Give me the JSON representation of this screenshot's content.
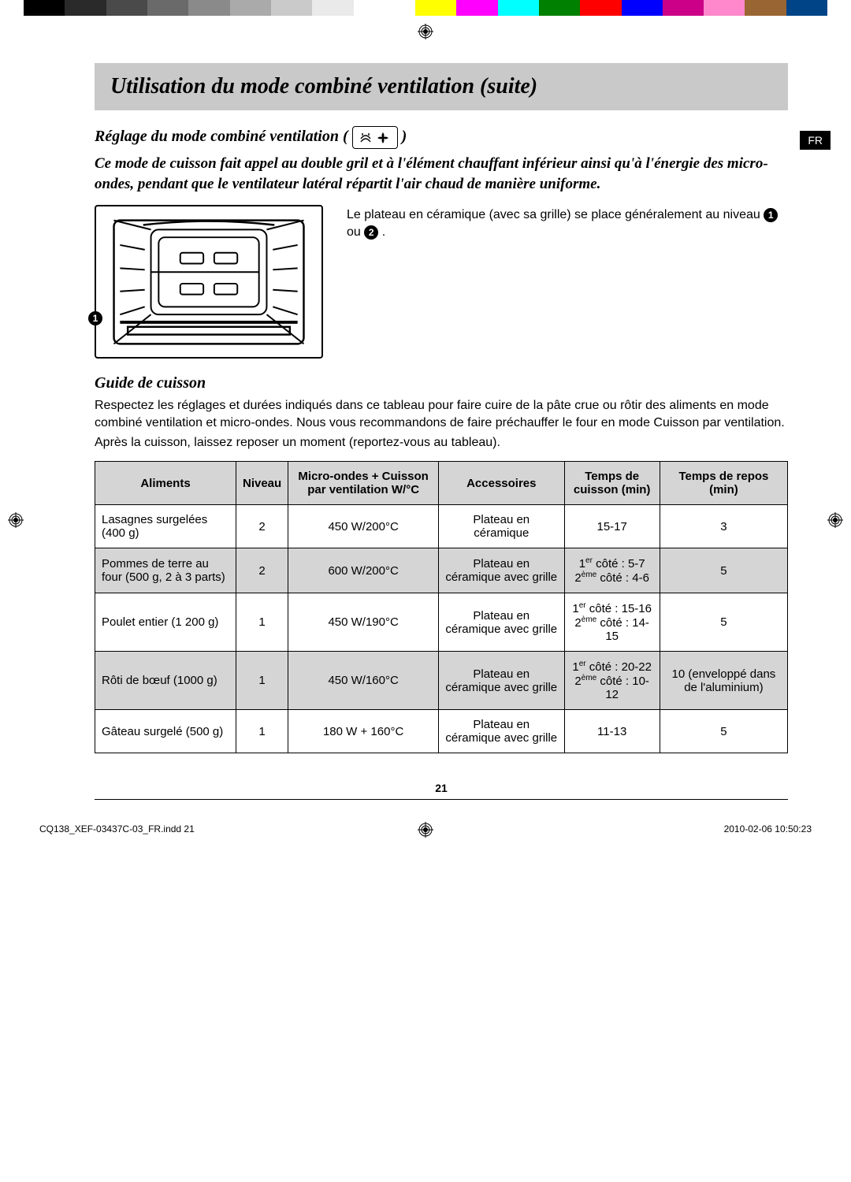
{
  "colorbar": {
    "swatches": [
      "#000000",
      "#2a2a2a",
      "#4a4a4a",
      "#6a6a6a",
      "#8a8a8a",
      "#aaaaaa",
      "#cacaca",
      "#eaeaea",
      "#ffffff",
      "",
      "#ffff00",
      "#ff00ff",
      "#00ffff",
      "#008000",
      "#ff0000",
      "#0000ff",
      "#cc0088",
      "#ff88cc",
      "#996633",
      "#004488"
    ]
  },
  "lang_tab": "FR",
  "title": "Utilisation du mode combiné ventilation (suite)",
  "section1_title": "Réglage du mode combiné ventilation ( ",
  "section1_title_end": " )",
  "intro": "Ce mode de cuisson fait appel au double gril et à l'élément chauffant inférieur ainsi qu'à l'énergie des micro-ondes, pendant que le ventilateur latéral répartit l'air chaud de manière uniforme.",
  "fig_caption_before": "Le plateau en céramique (avec sa grille) se place généralement au niveau ",
  "fig_caption_mid": " ou ",
  "fig_caption_end": ".",
  "fig_levels": [
    "1",
    "2"
  ],
  "section2_title": "Guide de cuisson",
  "para1": "Respectez les réglages et durées indiqués dans ce tableau pour faire cuire de la pâte crue ou rôtir des aliments en mode combiné ventilation et micro-ondes. Nous vous recommandons de faire préchauffer le four en mode Cuisson par ventilation.",
  "para2": "Après la cuisson, laissez reposer un moment (reportez-vous au tableau).",
  "table": {
    "columns": [
      "Aliments",
      "Niveau",
      "Micro-ondes + Cuisson par ventilation W/°C",
      "Accessoires",
      "Temps de cuisson (min)",
      "Temps de repos (min)"
    ],
    "rows": [
      {
        "shade": false,
        "aliments": "Lasagnes surgelées (400 g)",
        "niveau": "2",
        "mw": "450 W/200°C",
        "acc": "Plateau en céramique",
        "temps": "15-17",
        "repos": "3"
      },
      {
        "shade": true,
        "aliments": "Pommes de terre au four (500 g, 2 à 3 parts)",
        "niveau": "2",
        "mw": "600 W/200°C",
        "acc": "Plateau en céramique avec grille",
        "temps": "<span>1<sup>er</sup> côté : 5-7<br>2<sup>ème</sup> côté : 4-6</span>",
        "repos": "5"
      },
      {
        "shade": false,
        "aliments": "Poulet entier (1 200 g)",
        "niveau": "1",
        "mw": "450 W/190°C",
        "acc": "Plateau en céramique avec grille",
        "temps": "<span>1<sup>er</sup> côté : 15-16<br>2<sup>ème</sup> côté : 14-15</span>",
        "repos": "5"
      },
      {
        "shade": true,
        "aliments": "Rôti de bœuf (1000 g)",
        "niveau": "1",
        "mw": "450 W/160°C",
        "acc": "Plateau en céramique avec grille",
        "temps": "<span>1<sup>er</sup> côté : 20-22<br>2<sup>ème</sup> côté : 10-12</span>",
        "repos": "10 (enveloppé dans de l'aluminium)"
      },
      {
        "shade": false,
        "aliments": "Gâteau surgelé (500 g)",
        "niveau": "1",
        "mw": "180 W + 160°C",
        "acc": "Plateau en céramique avec grille",
        "temps": "11-13",
        "repos": "5"
      }
    ]
  },
  "page_number": "21",
  "footer_left": "CQ138_XEF-03437C-03_FR.indd   21",
  "footer_right": "2010-02-06   10:50:23"
}
